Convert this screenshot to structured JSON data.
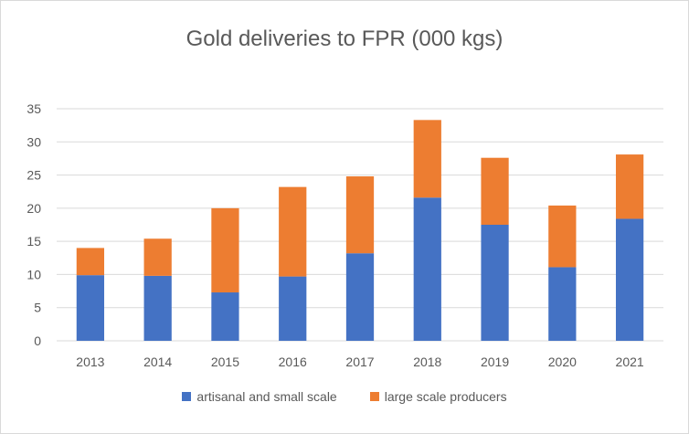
{
  "chart_data": {
    "type": "bar",
    "stacked": true,
    "title": "Gold deliveries to FPR (000 kgs)",
    "xlabel": "",
    "ylabel": "",
    "categories": [
      "2013",
      "2014",
      "2015",
      "2016",
      "2017",
      "2018",
      "2019",
      "2020",
      "2021"
    ],
    "series": [
      {
        "name": "artisanal and small scale",
        "color": "#4472c4",
        "values": [
          9.9,
          9.8,
          7.3,
          9.7,
          13.2,
          21.6,
          17.5,
          11.1,
          18.4
        ]
      },
      {
        "name": "large scale producers",
        "color": "#ed7d31",
        "values": [
          4.1,
          5.6,
          12.7,
          13.5,
          11.6,
          11.7,
          10.1,
          9.3,
          9.7
        ]
      }
    ],
    "ylim": [
      0,
      35
    ],
    "yticks": [
      "0",
      "5",
      "10",
      "15",
      "20",
      "25",
      "30",
      "35"
    ],
    "grid": true,
    "legend_position": "bottom"
  }
}
